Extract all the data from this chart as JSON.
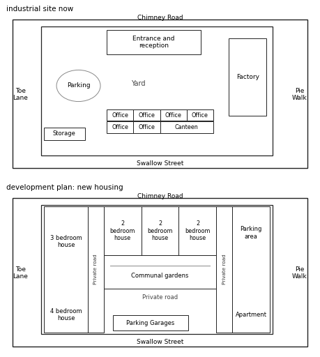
{
  "title1": "industrial site now",
  "title2": "development plan: new housing",
  "top_road": "Chimney Road",
  "bottom_road": "Swallow Street",
  "left_road": "Toe\nLane",
  "right_road": "Pie\nWalk",
  "map1": {
    "entrance": "Entrance and\nreception",
    "yard": "Yard",
    "parking": "Parking",
    "factory": "Factory",
    "storage": "Storage",
    "offices_row1": [
      "Office",
      "Office",
      "Office",
      "Office"
    ],
    "offices_row2": [
      "Office",
      "Office",
      "Canteen"
    ]
  },
  "map2": {
    "house_3bed": "3 bedroom\nhouse",
    "house_4bed": "4 bedroom\nhouse",
    "houses_2bed": [
      "2\nbedroom\nhouse",
      "2\nbedroom\nhouse",
      "2\nbedroom\nhouse"
    ],
    "communal": "Communal gardens",
    "private_road_label": "Private road",
    "private_road_side": "Private road",
    "parking_area": "Parking\narea",
    "apartment": "Apartment",
    "parking_garages": "Parking Garages"
  }
}
